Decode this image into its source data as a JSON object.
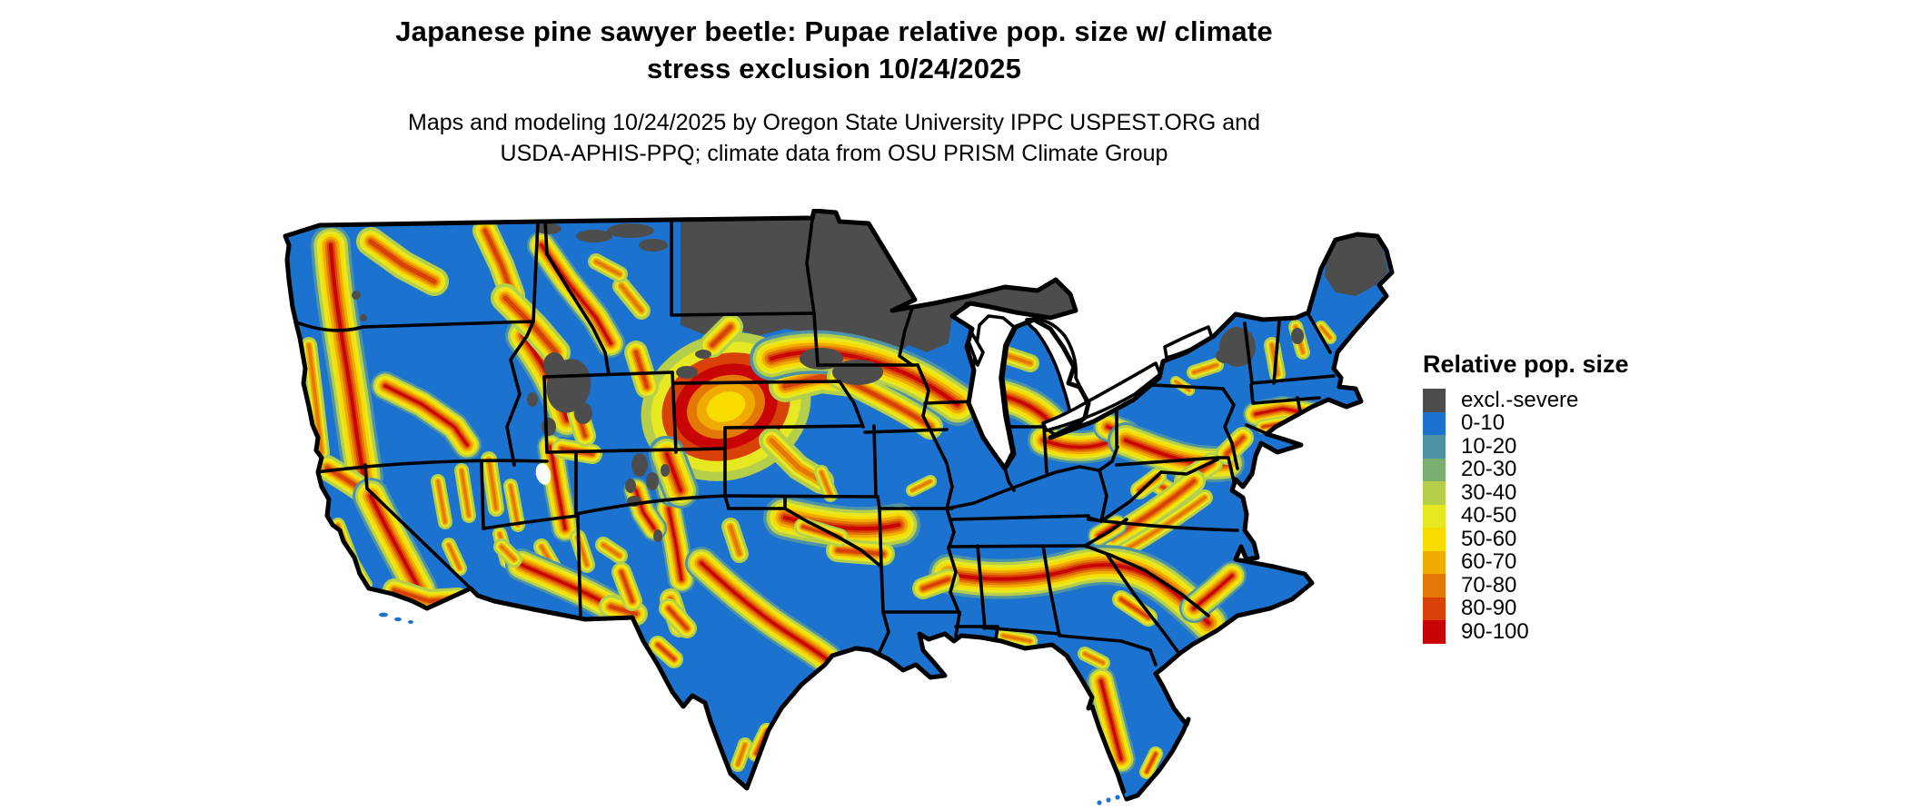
{
  "header": {
    "title_line1": "Japanese pine sawyer beetle: Pupae relative pop. size w/ climate",
    "title_line2": "stress exclusion 10/24/2025",
    "subtitle_line1": "Maps and modeling 10/24/2025 by Oregon State University IPPC USPEST.ORG and",
    "subtitle_line2": "USDA-APHIS-PPQ; climate data from OSU PRISM Climate Group"
  },
  "legend": {
    "title": "Relative pop. size",
    "items": [
      {
        "label": "excl.-severe",
        "color": "#4D4D4D"
      },
      {
        "label": "0-10",
        "color": "#1C73CF"
      },
      {
        "label": "10-20",
        "color": "#4E92A6"
      },
      {
        "label": "20-30",
        "color": "#79B06F"
      },
      {
        "label": "30-40",
        "color": "#B6CF4A"
      },
      {
        "label": "40-50",
        "color": "#E6E821"
      },
      {
        "label": "50-60",
        "color": "#F8DB00"
      },
      {
        "label": "60-70",
        "color": "#F0AB02"
      },
      {
        "label": "70-80",
        "color": "#E47806"
      },
      {
        "label": "80-90",
        "color": "#D84108"
      },
      {
        "label": "90-100",
        "color": "#C80404"
      }
    ]
  },
  "map": {
    "name": "Contiguous United States relative population raster map",
    "background_color": "#FFFFFF",
    "water_color": "#FFFFFF",
    "state_border_color": "#000000",
    "base_fill_key": "b0",
    "excluded_fill_key": "bx",
    "palette": {
      "bx": "#4D4D4D",
      "b0": "#1C73CF",
      "b10": "#4E92A6",
      "b20": "#79B06F",
      "b30": "#B6CF4A",
      "b40": "#E6E821",
      "b50": "#F8DB00",
      "b60": "#F0AB02",
      "b70": "#E47806",
      "b80": "#D84108",
      "b90": "#C80404"
    },
    "excluded_regions_note": "Dark gray exclusion band across ND, northern MN, northern WI, upper MI, northern Maine, Adirondacks NY, Yellowstone WY, Colorado high peaks"
  }
}
